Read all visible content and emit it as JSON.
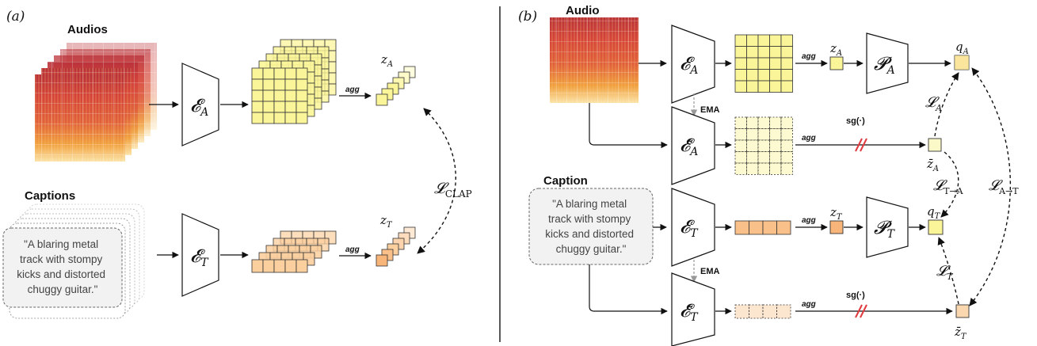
{
  "panel_a": {
    "label": "(a)",
    "audios_heading": "Audios",
    "captions_heading": "Captions",
    "caption_lines": [
      "\"A blaring metal",
      "track with stompy",
      "kicks and distorted",
      "chuggy guitar.\""
    ],
    "enc_audio": "𝓔",
    "enc_audio_sub": "A",
    "enc_text": "𝓔",
    "enc_text_sub": "T",
    "agg_audio": "agg",
    "agg_text": "agg",
    "z_audio": "z",
    "z_audio_sub": "A",
    "z_text": "z",
    "z_text_sub": "T",
    "loss": "𝓛",
    "loss_sub": "CLAP"
  },
  "panel_b": {
    "label": "(b)",
    "audio_heading": "Audio",
    "caption_heading": "Caption",
    "caption_lines": [
      "\"A blaring metal",
      "track with stompy",
      "kicks and distorted",
      "chuggy guitar.\""
    ],
    "enc_audio": "𝓔",
    "enc_audio_sub": "A",
    "enc_audio_ema": "𝓔̄",
    "enc_audio_ema_sub": "A",
    "enc_text": "𝓔",
    "enc_text_sub": "T",
    "enc_text_ema": "𝓔̄",
    "enc_text_ema_sub": "T",
    "proj_audio": "𝓟",
    "proj_audio_sub": "A",
    "proj_text": "𝓟",
    "proj_text_sub": "T",
    "ema_top": "EMA",
    "ema_bottom": "EMA",
    "agg_1": "agg",
    "agg_2": "agg",
    "agg_3": "agg",
    "agg_4": "agg",
    "sg_top": "sg(·)",
    "sg_bottom": "sg(·)",
    "z_a": "z",
    "z_a_sub": "A",
    "z_a_bar": "z̄",
    "z_a_bar_sub": "A",
    "z_t": "z",
    "z_t_sub": "T",
    "z_t_bar": "z̄",
    "z_t_bar_sub": "T",
    "q_a": "q",
    "q_a_sub": "A",
    "q_t": "q",
    "q_t_sub": "T",
    "loss_a": "𝓛",
    "loss_a_sub": "A",
    "loss_t": "𝓛",
    "loss_t_sub": "T",
    "loss_t_to_a": "𝓛",
    "loss_t_to_a_sub": "T→A",
    "loss_a_to_t": "𝓛",
    "loss_a_to_t_sub": "A→T"
  },
  "colors": {
    "audio_grid": "#fbf59a",
    "text_grid": "#fbcf9e",
    "grid_stroke": "#333333",
    "loss_dashed": "#111111",
    "sg_mark": "#e0393e",
    "ema_arrow": "#999999"
  }
}
